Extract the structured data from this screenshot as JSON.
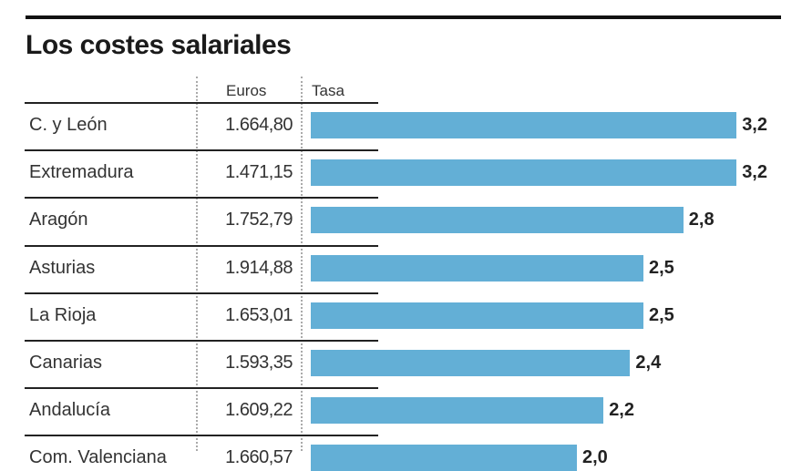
{
  "chart_data": {
    "type": "bar",
    "title": "Los costes salariales",
    "columns": [
      "Euros",
      "Tasa"
    ],
    "categories": [
      "C. y León",
      "Extremadura",
      "Aragón",
      "Asturias",
      "La Rioja",
      "Canarias",
      "Andalucía",
      "Com. Valenciana"
    ],
    "euros": [
      "1.664,80",
      "1.471,15",
      "1.752,79",
      "1.914,88",
      "1.653,01",
      "1.593,35",
      "1.609,22",
      "1.660,57"
    ],
    "values": [
      3.2,
      3.2,
      2.8,
      2.5,
      2.5,
      2.4,
      2.2,
      2.0
    ],
    "value_labels": [
      "3,2",
      "3,2",
      "2,8",
      "2,5",
      "2,5",
      "2,4",
      "2,2",
      "2,0"
    ],
    "bar_color": "#63afd6"
  }
}
